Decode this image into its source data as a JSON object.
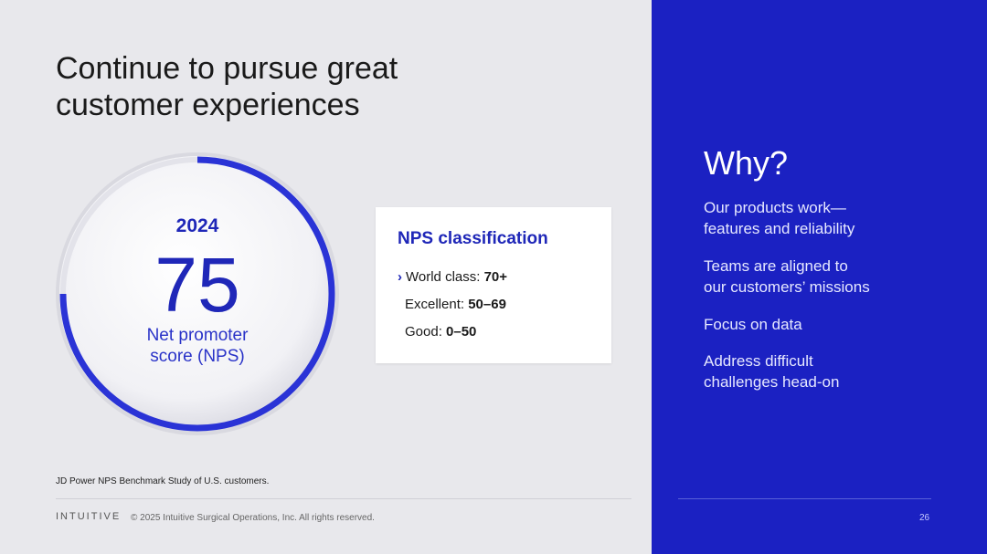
{
  "slide": {
    "title_line1": "Continue to pursue great",
    "title_line2": "customer experiences"
  },
  "gauge": {
    "year": "2024",
    "value": "75",
    "label_line1": "Net promoter",
    "label_line2": "score (NPS)",
    "progress_fraction": 0.75,
    "accent_color": "#2a33d6"
  },
  "classification": {
    "title": "NPS classification",
    "rows": [
      {
        "label": "World class: ",
        "value": "70+",
        "marker": "›"
      },
      {
        "label": "Excellent: ",
        "value": "50–69"
      },
      {
        "label": "Good: ",
        "value": "0–50"
      }
    ]
  },
  "why": {
    "heading": "Why?",
    "reasons": [
      {
        "line1": "Our products work—",
        "line2": "features and reliability"
      },
      {
        "line1": "Teams are aligned to",
        "line2": "our customers’ missions"
      },
      {
        "line1": "Focus on data",
        "line2": ""
      },
      {
        "line1": "Address difficult",
        "line2": "challenges head-on"
      }
    ]
  },
  "footer": {
    "footnote": "JD Power NPS Benchmark Study of U.S. customers.",
    "logo": "INTUITIVE",
    "copyright": "© 2025 Intuitive Surgical Operations, Inc. All rights reserved.",
    "page_number": "26"
  },
  "colors": {
    "panel_blue": "#1b21c2",
    "text_blue": "#1f27b8"
  }
}
